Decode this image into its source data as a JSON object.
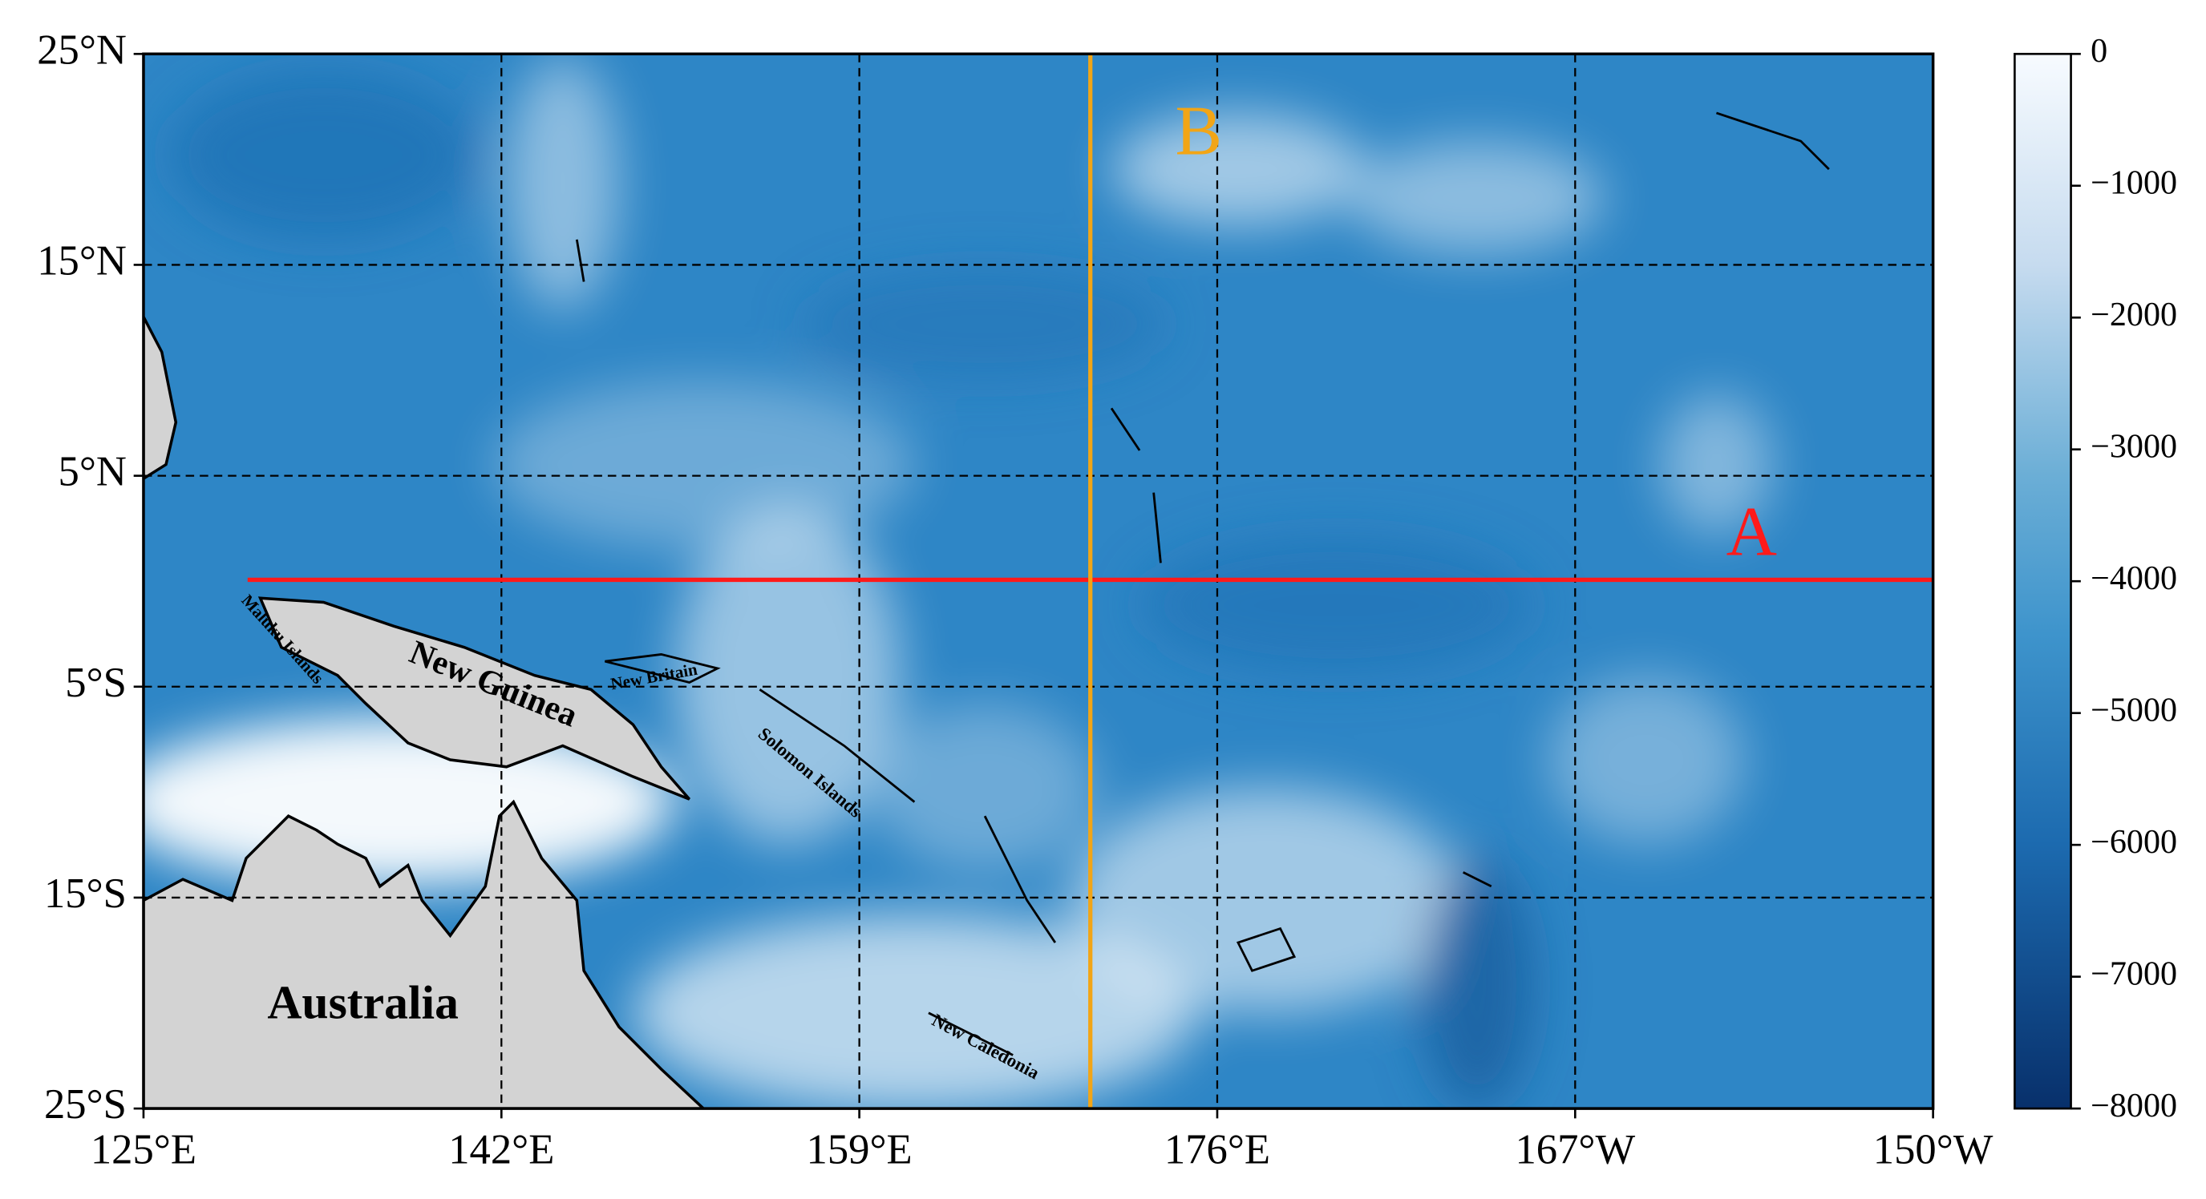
{
  "map": {
    "lat_labels": [
      "25°N",
      "15°N",
      "5°N",
      "5°S",
      "15°S",
      "25°S"
    ],
    "lon_labels": [
      "125°E",
      "142°E",
      "159°E",
      "176°E",
      "167°W",
      "150°W"
    ],
    "colorbar": {
      "lim": [
        -8000,
        0
      ],
      "ticks": [
        0,
        {
          "value": -1000,
          "label": "−1000"
        },
        {
          "value": -2000,
          "label": "−2000"
        },
        {
          "value": -3000,
          "label": "−3000"
        },
        {
          "value": -4000,
          "label": "−4000"
        },
        {
          "value": -5000,
          "label": "−5000"
        },
        {
          "value": -6000,
          "label": "−6000"
        },
        {
          "value": -7000,
          "label": "−7000"
        },
        {
          "value": -8000,
          "label": "−8000"
        }
      ]
    },
    "profiles": {
      "a": "A",
      "b": "B"
    },
    "places": {
      "australia": "Australia",
      "new_guinea": "New Guinea",
      "new_britain": "New Britain",
      "solomon": "Solomon Islands",
      "new_caledonia": "New Caledonia",
      "maluku": "Maluku Islands"
    }
  }
}
